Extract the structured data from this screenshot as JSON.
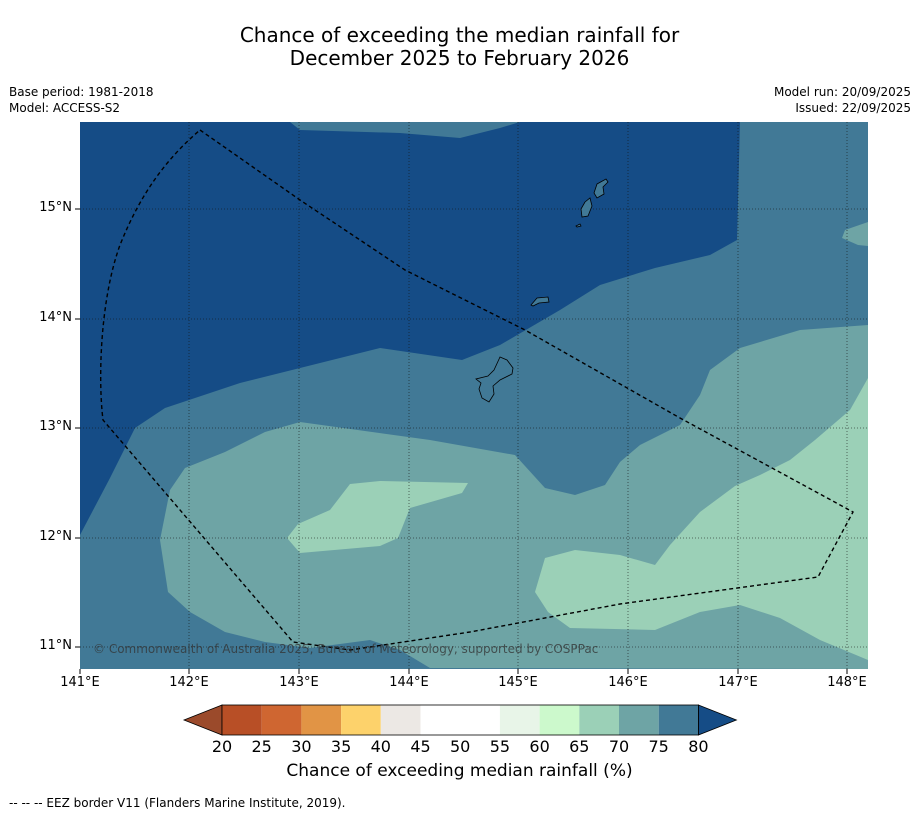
{
  "title": {
    "line1": "Chance of exceeding the median rainfall for",
    "line2": "December 2025 to February 2026"
  },
  "meta_left": {
    "base_period": "Base period: 1981-2018",
    "model": "Model: ACCESS-S2"
  },
  "meta_right": {
    "model_run": "Model run: 20/09/2025",
    "issued": "Issued: 22/09/2025"
  },
  "map": {
    "lat_labels": [
      "15°N",
      "14°N",
      "13°N",
      "12°N",
      "11°N"
    ],
    "lon_labels": [
      "141°E",
      "142°E",
      "143°E",
      "144°E",
      "145°E",
      "146°E",
      "147°E",
      "148°E"
    ],
    "copyright": "© Commonwealth of Australia 2025, Bureau of Meteorology, supported by COSPPac",
    "islands": [
      "Guam",
      "Rota",
      "Tinian",
      "Saipan"
    ]
  },
  "colorbar": {
    "ticks": [
      "20",
      "25",
      "30",
      "35",
      "40",
      "45",
      "50",
      "55",
      "60",
      "65",
      "70",
      "75",
      "80"
    ],
    "colors": [
      "#9b4a2b",
      "#b84f26",
      "#cf6631",
      "#e19445",
      "#fdd26b",
      "#ece8e4",
      "#ffffff",
      "#ffffff",
      "#e8f5e8",
      "#ccf9cc",
      "#9bd0b7",
      "#6ea4a5",
      "#417996",
      "#154c86"
    ],
    "title": "Chance of exceeding median rainfall (%)"
  },
  "footer": "--  --  -- EEZ border V11 (Flanders Marine Institute, 2019)."
}
